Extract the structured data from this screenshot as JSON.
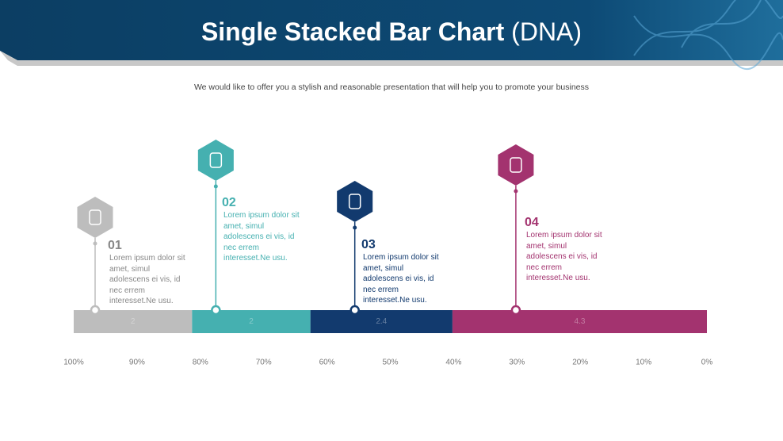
{
  "header": {
    "title": "Single Stacked Bar Chart",
    "title_suffix": "(DNA)"
  },
  "subtitle": "We would like to offer you a stylish and reasonable presentation that will help you to promote your business",
  "chart_data": {
    "type": "stacked-bar-100",
    "series": [
      {
        "name": "01",
        "description": "Lorem ipsum dolor sit amet, simul adolescens ei vis, id nec errem interesset.Ne usu.",
        "color": "#bdbdbd",
        "values": [
          2
        ]
      },
      {
        "name": "02",
        "description": "Lorem ipsum dolor sit amet, simul adolescens ei vis, id nec errem interesset.Ne usu.",
        "color": "#45b0b0",
        "values": [
          2
        ]
      },
      {
        "name": "03",
        "description": "Lorem ipsum dolor sit amet, simul adolescens ei vis, id nec errem interesset.Ne usu.",
        "color": "#123a6e",
        "values": [
          2.4
        ]
      },
      {
        "name": "04",
        "description": "Lorem ipsum dolor sit amet, simul adolescens ei vis, id nec errem interesset.Ne usu.",
        "color": "#a3336f",
        "values": [
          4.3
        ]
      }
    ],
    "xlim": [
      100,
      0
    ],
    "xticks": [
      {
        "value": 100,
        "label": "100%"
      },
      {
        "value": 90,
        "label": "90%"
      },
      {
        "value": 80,
        "label": "80%"
      },
      {
        "value": 70,
        "label": "70%"
      },
      {
        "value": 60,
        "label": "60%"
      },
      {
        "value": 50,
        "label": "50%"
      },
      {
        "value": 40,
        "label": "40%"
      },
      {
        "value": 30,
        "label": "30%"
      },
      {
        "value": 20,
        "label": "20%"
      },
      {
        "value": 10,
        "label": "10%"
      },
      {
        "value": 0,
        "label": "0%"
      }
    ]
  }
}
